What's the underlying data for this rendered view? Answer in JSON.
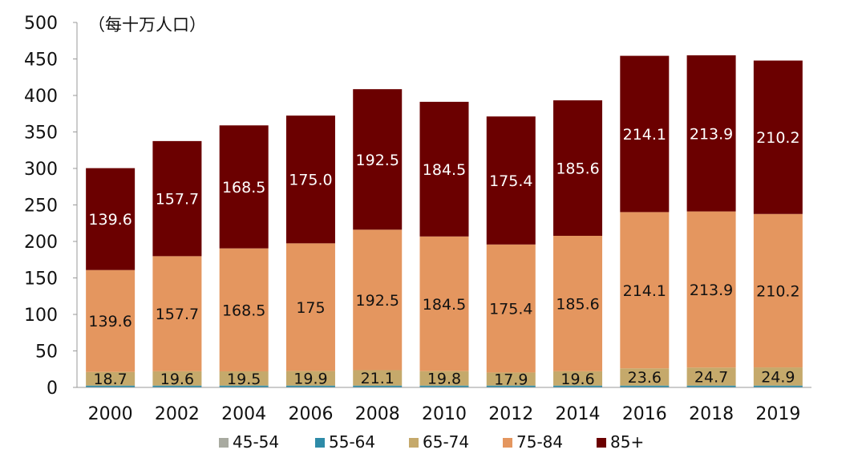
{
  "chart_data": {
    "type": "bar",
    "stacked": true,
    "unit_label": "（每十万人口）",
    "categories": [
      "2000",
      "2002",
      "2004",
      "2006",
      "2008",
      "2010",
      "2012",
      "2014",
      "2016",
      "2018",
      "2019"
    ],
    "ylim": [
      0,
      500
    ],
    "yticks": [
      0,
      50,
      100,
      150,
      200,
      250,
      300,
      350,
      400,
      450,
      500
    ],
    "grid": false,
    "legend_position": "bottom",
    "series": [
      {
        "name": "45-54",
        "color": "#a8aaa0",
        "values": [
          0.5,
          0.5,
          0.5,
          0.5,
          0.5,
          0.5,
          0.5,
          0.5,
          0.5,
          0.5,
          0.5
        ]
      },
      {
        "name": "55-64",
        "color": "#2e8ba8",
        "values": [
          2,
          2,
          2,
          2,
          2,
          2,
          2,
          2,
          2,
          2,
          2
        ]
      },
      {
        "name": "65-74",
        "color": "#c5a96b",
        "values": [
          18.7,
          19.6,
          19.5,
          19.9,
          21.1,
          19.8,
          17.9,
          19.6,
          23.6,
          24.7,
          24.9
        ],
        "labels": [
          "18.7",
          "19.6",
          "19.5",
          "19.9",
          "21.1",
          "19.8",
          "17.9",
          "19.6",
          "23.6",
          "24.7",
          "24.9"
        ]
      },
      {
        "name": "75-84",
        "color": "#e4965f",
        "values": [
          139.6,
          157.7,
          168.5,
          175,
          192.5,
          184.5,
          175.4,
          185.6,
          214.1,
          213.9,
          210.2
        ],
        "labels": [
          "139.6",
          "157.7",
          "168.5",
          "175",
          "192.5",
          "184.5",
          "175.4",
          "185.6",
          "214.1",
          "213.9",
          "210.2"
        ]
      },
      {
        "name": "85+",
        "color": "#6b0000",
        "values": [
          139.6,
          157.7,
          168.5,
          175.0,
          192.5,
          184.5,
          175.4,
          185.6,
          214.1,
          213.9,
          210.2
        ],
        "labels": [
          "139.6",
          "157.7",
          "168.5",
          "175.0",
          "192.5",
          "184.5",
          "175.4",
          "185.6",
          "214.1",
          "213.9",
          "210.2"
        ]
      }
    ]
  }
}
